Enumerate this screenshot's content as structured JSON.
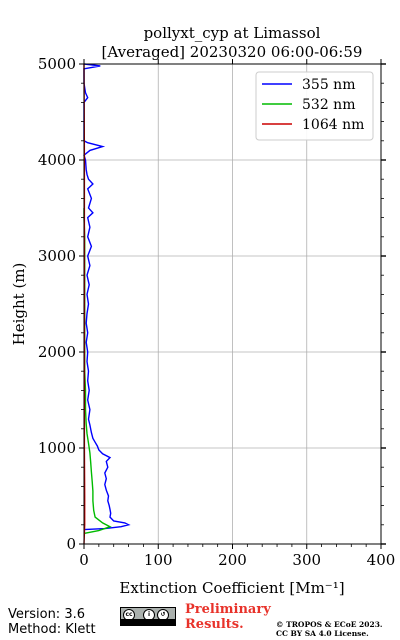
{
  "chart_data": {
    "type": "line",
    "title": "pollyxt_cyp at Limassol",
    "subtitle": "[Averaged] 20230320 06:00-06:59",
    "xlabel": "Extinction Coefficient [Mm⁻¹]",
    "ylabel": "Height (m)",
    "xlim": [
      0,
      400
    ],
    "ylim": [
      0,
      5000
    ],
    "x_ticks": [
      "0",
      "100",
      "200",
      "300",
      "400"
    ],
    "y_ticks": [
      "0",
      "1000",
      "2000",
      "3000",
      "4000",
      "5000"
    ],
    "grid": true,
    "legend_position": "top-right",
    "series": [
      {
        "name": "355 nm",
        "color": "#0000ff",
        "points": [
          [
            0,
            150
          ],
          [
            28,
            160
          ],
          [
            50,
            180
          ],
          [
            60,
            200
          ],
          [
            55,
            220
          ],
          [
            40,
            240
          ],
          [
            35,
            280
          ],
          [
            36,
            320
          ],
          [
            35,
            360
          ],
          [
            34,
            400
          ],
          [
            32,
            450
          ],
          [
            33,
            500
          ],
          [
            30,
            560
          ],
          [
            28,
            620
          ],
          [
            30,
            680
          ],
          [
            28,
            740
          ],
          [
            32,
            800
          ],
          [
            30,
            860
          ],
          [
            35,
            900
          ],
          [
            25,
            940
          ],
          [
            20,
            980
          ],
          [
            18,
            1020
          ],
          [
            15,
            1060
          ],
          [
            12,
            1100
          ],
          [
            10,
            1160
          ],
          [
            8,
            1240
          ],
          [
            6,
            1300
          ],
          [
            8,
            1400
          ],
          [
            5,
            1500
          ],
          [
            7,
            1600
          ],
          [
            5,
            1700
          ],
          [
            6,
            1800
          ],
          [
            4,
            1900
          ],
          [
            5,
            2000
          ],
          [
            3,
            2100
          ],
          [
            5,
            2200
          ],
          [
            3,
            2300
          ],
          [
            4,
            2400
          ],
          [
            6,
            2500
          ],
          [
            4,
            2600
          ],
          [
            7,
            2700
          ],
          [
            4,
            2800
          ],
          [
            8,
            2900
          ],
          [
            5,
            3000
          ],
          [
            10,
            3100
          ],
          [
            5,
            3200
          ],
          [
            8,
            3300
          ],
          [
            5,
            3400
          ],
          [
            12,
            3450
          ],
          [
            6,
            3500
          ],
          [
            10,
            3600
          ],
          [
            5,
            3700
          ],
          [
            12,
            3750
          ],
          [
            6,
            3800
          ],
          [
            4,
            3850
          ],
          [
            3,
            3900
          ],
          [
            2,
            4000
          ],
          [
            0,
            4050
          ],
          [
            8,
            4100
          ],
          [
            25,
            4140
          ],
          [
            5,
            4180
          ],
          [
            0,
            4200
          ],
          [
            0,
            4600
          ],
          [
            5,
            4650
          ],
          [
            2,
            4700
          ],
          [
            0,
            4800
          ],
          [
            0,
            4950
          ],
          [
            22,
            4980
          ],
          [
            0,
            5000
          ]
        ]
      },
      {
        "name": "532 nm",
        "color": "#00bb00",
        "points": [
          [
            0,
            110
          ],
          [
            20,
            140
          ],
          [
            35,
            180
          ],
          [
            25,
            220
          ],
          [
            15,
            280
          ],
          [
            13,
            350
          ],
          [
            12,
            450
          ],
          [
            12,
            550
          ],
          [
            11,
            650
          ],
          [
            10,
            750
          ],
          [
            9,
            850
          ],
          [
            8,
            950
          ],
          [
            6,
            1050
          ],
          [
            4,
            1150
          ],
          [
            3,
            1250
          ],
          [
            2,
            1400
          ],
          [
            2,
            1600
          ],
          [
            1,
            1800
          ],
          [
            1,
            2000
          ],
          [
            1,
            2200
          ],
          [
            1,
            2400
          ],
          [
            1,
            2600
          ],
          [
            1,
            2800
          ],
          [
            1,
            3000
          ],
          [
            1,
            3200
          ],
          [
            0,
            3400
          ],
          [
            0,
            3500
          ]
        ]
      },
      {
        "name": "1064 nm",
        "color": "#cc0000",
        "points": [
          [
            0,
            0
          ],
          [
            1,
            200
          ],
          [
            1,
            500
          ],
          [
            0.5,
            1000
          ],
          [
            0.5,
            2000
          ],
          [
            0.5,
            3000
          ],
          [
            0.5,
            4000
          ],
          [
            0,
            5000
          ]
        ]
      }
    ]
  },
  "footer": {
    "version": "Version: 3.6",
    "method": "Method: Klett",
    "preliminary_line1": "Preliminary",
    "preliminary_line2": "Results.",
    "copyright_line1": "© TROPOS & ECoE 2023.",
    "copyright_line2": "CC BY SA 4.0 License."
  }
}
